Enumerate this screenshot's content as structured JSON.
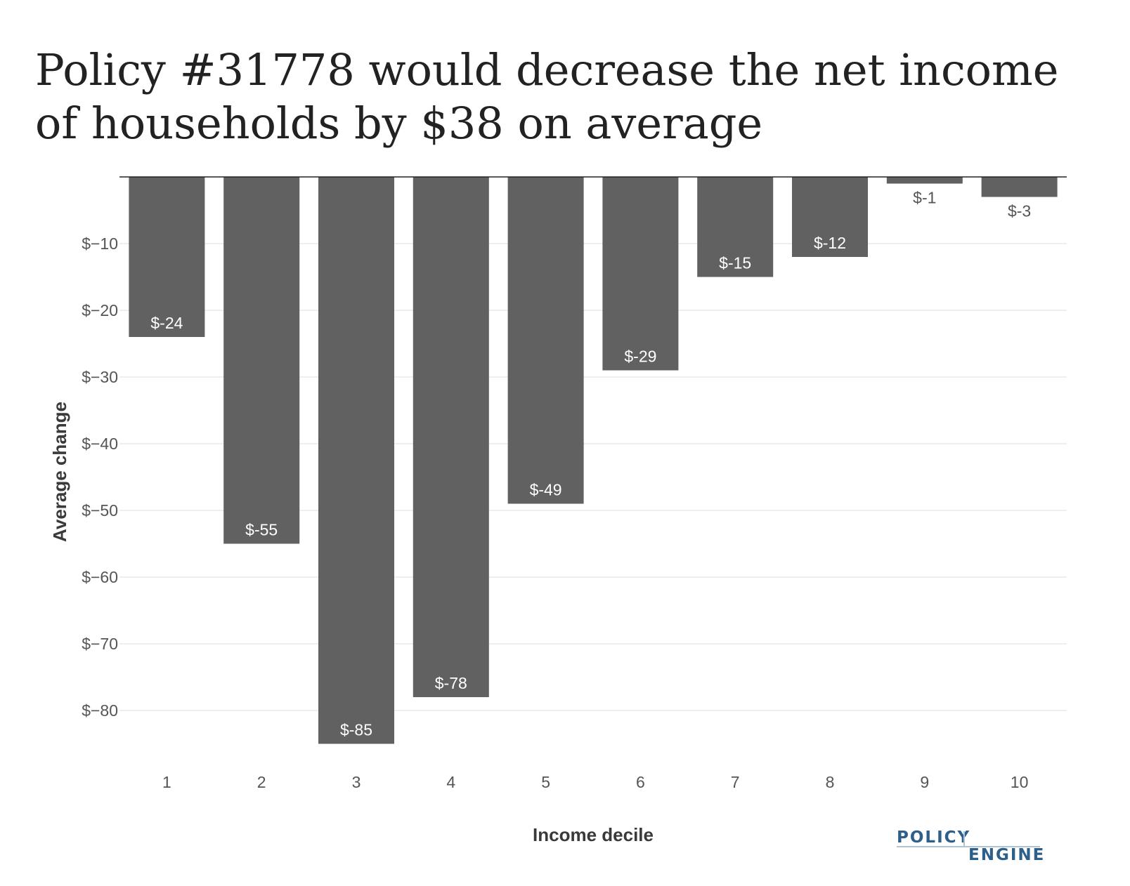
{
  "chart_data": {
    "type": "bar",
    "title": "Policy #31778 would decrease the net income of households by $38 on average",
    "xlabel": "Income decile",
    "ylabel": "Average change",
    "categories": [
      "1",
      "2",
      "3",
      "4",
      "5",
      "6",
      "7",
      "8",
      "9",
      "10"
    ],
    "values": [
      -24,
      -55,
      -85,
      -78,
      -49,
      -29,
      -15,
      -12,
      -1,
      -3
    ],
    "data_labels": [
      "$-24",
      "$-55",
      "$-85",
      "$-78",
      "$-49",
      "$-29",
      "$-15",
      "$-12",
      "$-1",
      "$-3"
    ],
    "yticks": [
      -10,
      -20,
      -30,
      -40,
      -50,
      -60,
      -70,
      -80
    ],
    "ytick_labels": [
      "$−10",
      "$−20",
      "$−30",
      "$−40",
      "$−50",
      "$−60",
      "$−70",
      "$−80"
    ],
    "ylim": [
      -85,
      0
    ],
    "grid": true,
    "bar_color": "#616161",
    "gridline_color": "#eeeeee",
    "label_color_inside": "#ffffff",
    "label_color_outside": "#555555"
  },
  "logo": {
    "line1": "POLICY",
    "line2": "ENGINE",
    "color": "#2c5f8a",
    "accent_color": "#b0c4d8"
  }
}
